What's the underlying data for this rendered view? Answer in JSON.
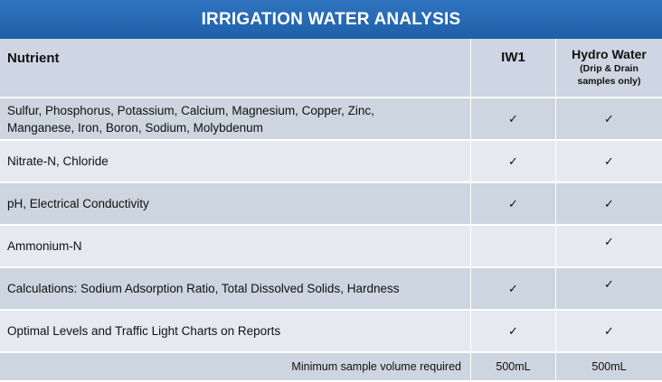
{
  "title": "IRRIGATION WATER ANALYSIS",
  "header": {
    "nutrient": "Nutrient",
    "iw1": "IW1",
    "hydro_main": "Hydro Water",
    "hydro_sub1": "(Drip & Drain",
    "hydro_sub2": "samples only)"
  },
  "rows": [
    {
      "label": "Sulfur, Phosphorus, Potassium, Calcium, Magnesium, Copper, Zinc, Manganese, Iron, Boron, Sodium, Molybdenum",
      "iw1": "✓",
      "hydro": "✓"
    },
    {
      "label": "Nitrate-N, Chloride",
      "iw1": "✓",
      "hydro": "✓"
    },
    {
      "label": "pH, Electrical Conductivity",
      "iw1": "✓",
      "hydro": "✓"
    },
    {
      "label": "Ammonium-N",
      "iw1": "",
      "hydro": "✓"
    },
    {
      "label": "Calculations: Sodium Adsorption Ratio, Total Dissolved Solids, Hardness",
      "iw1": "✓",
      "hydro": "✓"
    },
    {
      "label": "Optimal Levels  and Traffic Light Charts on Reports",
      "iw1": "✓",
      "hydro": "✓"
    }
  ],
  "footer": {
    "label": "Minimum sample volume required",
    "iw1": "500mL",
    "hydro": "500mL"
  }
}
